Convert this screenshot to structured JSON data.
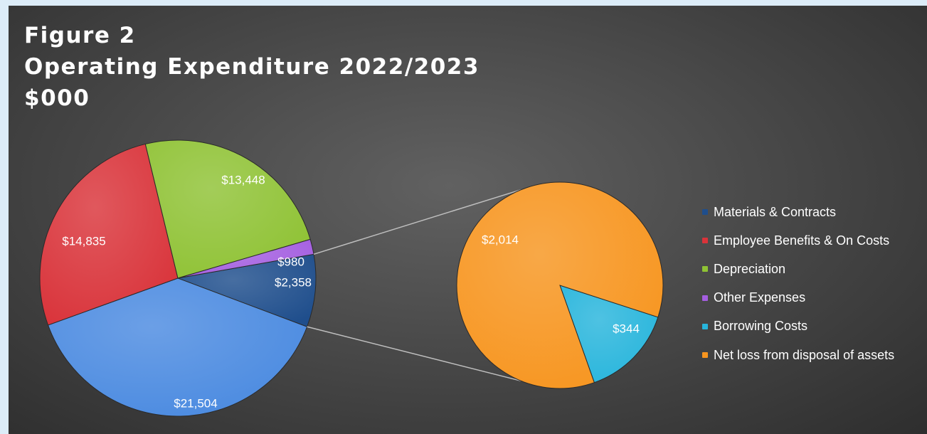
{
  "chart_data": {
    "type": "pie",
    "subtype": "pie-of-pie",
    "title": [
      "Figure 2",
      "Operating Expenditure 2022/2023",
      "$000"
    ],
    "slices": [
      {
        "name": "Materials & Contracts",
        "value": 2358,
        "label": "$2,358",
        "color": "#1f4e8c"
      },
      {
        "name": "Employee Benefits & On Costs",
        "value": 14835,
        "label": "$14,835",
        "color": "#d9333a"
      },
      {
        "name": "Depreciation",
        "value": 13448,
        "label": "$13,448",
        "color": "#8fc234"
      },
      {
        "name": "Other Expenses",
        "value": 980,
        "label": "$980",
        "color": "#a45ee0"
      },
      {
        "name": "Borrowing Costs",
        "value": 344,
        "label": "$344",
        "color": "#27b5dc"
      },
      {
        "name": "Net loss from disposal of assets",
        "value": 2014,
        "label": "$2,014",
        "color": "#f7951f"
      },
      {
        "name": "",
        "value": 21504,
        "label": "$21,504",
        "color": "#4a8ae0"
      }
    ],
    "legend_position": "right"
  }
}
